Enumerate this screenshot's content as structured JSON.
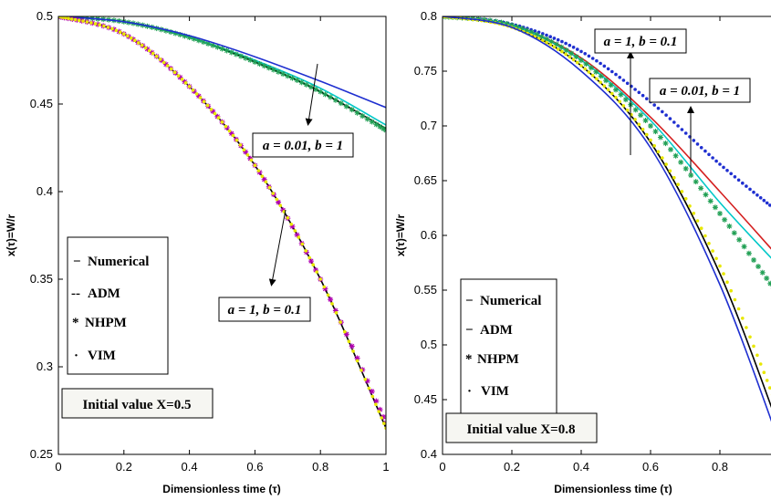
{
  "charts": {
    "left": {
      "chart_data": {
        "type": "line",
        "xlabel": "Dimensionless time (τ)",
        "ylabel": "x(τ)=W/r",
        "xlim": [
          0,
          1
        ],
        "ylim": [
          0.25,
          0.5
        ],
        "x_ticks": [
          "0",
          "0.2",
          "0.4",
          "0.6",
          "0.8",
          "1"
        ],
        "y_ticks": [
          "0.25",
          "0.3",
          "0.35",
          "0.4",
          "0.45",
          "0.5"
        ],
        "grid": false,
        "legend": {
          "placement": "left",
          "entries": [
            {
              "marker": "−",
              "label": "Numerical"
            },
            {
              "marker": "--",
              "label": "ADM"
            },
            {
              "marker": "*",
              "label": "NHPM"
            },
            {
              "marker": "·",
              "label": "VIM"
            }
          ]
        },
        "note": "Initial value X=0.5",
        "annotations": [
          {
            "text": "a = 0.01, b = 1"
          },
          {
            "text": "a = 1, b = 0.1"
          }
        ],
        "colors": {
          "numerical": "#000000",
          "adm": "#00c8c8",
          "nhpm": "#b000b0",
          "vim": "#e8e800",
          "alt1": "#1f2fd0",
          "alt2": "#22a055"
        },
        "series": [
          {
            "group": "a=0.01,b=1",
            "method": "Numerical",
            "x": [
              0,
              0.2,
              0.4,
              0.6,
              0.8,
              1
            ],
            "y": [
              0.5,
              0.497,
              0.488,
              0.474,
              0.457,
              0.436
            ]
          },
          {
            "group": "a=0.01,b=1",
            "method": "ADM",
            "x": [
              0,
              0.2,
              0.4,
              0.6,
              0.8,
              1
            ],
            "y": [
              0.5,
              0.497,
              0.488,
              0.475,
              0.459,
              0.438
            ]
          },
          {
            "group": "a=0.01,b=1",
            "method": "NHPM",
            "x": [
              0,
              0.2,
              0.4,
              0.6,
              0.8,
              1
            ],
            "y": [
              0.5,
              0.497,
              0.488,
              0.474,
              0.457,
              0.435
            ]
          },
          {
            "group": "a=0.01,b=1",
            "method": "VIM",
            "x": [
              0,
              0.2,
              0.4,
              0.6,
              0.8,
              1
            ],
            "y": [
              0.5,
              0.497,
              0.489,
              0.477,
              0.463,
              0.448
            ]
          },
          {
            "group": "a=1,b=0.1",
            "method": "Numerical",
            "x": [
              0,
              0.2,
              0.4,
              0.6,
              0.8,
              1
            ],
            "y": [
              0.5,
              0.49,
              0.46,
              0.415,
              0.35,
              0.265
            ]
          },
          {
            "group": "a=1,b=0.1",
            "method": "NHPM",
            "x": [
              0,
              0.2,
              0.4,
              0.6,
              0.8,
              1
            ],
            "y": [
              0.5,
              0.49,
              0.46,
              0.415,
              0.35,
              0.268
            ]
          },
          {
            "group": "a=1,b=0.1",
            "method": "VIM",
            "x": [
              0,
              0.2,
              0.4,
              0.6,
              0.8,
              1
            ],
            "y": [
              0.5,
              0.49,
              0.46,
              0.415,
              0.35,
              0.265
            ]
          }
        ]
      }
    },
    "right": {
      "chart_data": {
        "type": "line",
        "xlabel": "Dimensionless time (τ)",
        "ylabel": "x(τ)=W/r",
        "xlim": [
          0,
          1
        ],
        "ylim": [
          0.4,
          0.8
        ],
        "x_ticks": [
          "0",
          "0.2",
          "0.4",
          "0.6",
          "0.8"
        ],
        "y_ticks": [
          "0.4",
          "0.45",
          "0.5",
          "0.55",
          "0.6",
          "0.65",
          "0.7",
          "0.75",
          "0.8"
        ],
        "grid": false,
        "legend": {
          "placement": "bottom-left",
          "entries": [
            {
              "marker": "−",
              "label": "Numerical"
            },
            {
              "marker": "−",
              "label": "ADM"
            },
            {
              "marker": "*",
              "label": "NHPM"
            },
            {
              "marker": "·",
              "label": "VIM"
            }
          ]
        },
        "note": "Initial value X=0.8",
        "annotations": [
          {
            "text": "a = 1, b = 0.1"
          },
          {
            "text": "a = 0.01, b = 1"
          }
        ],
        "colors": {
          "numerical": "#000000",
          "adm": "#00c8c8",
          "nhpm": "#22a055",
          "vim": "#e8e800",
          "alt1": "#1f2fd0",
          "alt2": "#d42020"
        },
        "series": [
          {
            "group": "a=0.01,b=1",
            "method": "VIM",
            "x": [
              0,
              0.2,
              0.4,
              0.6,
              0.8,
              0.97
            ],
            "y": [
              0.8,
              0.793,
              0.768,
              0.722,
              0.665,
              0.621
            ]
          },
          {
            "group": "a=0.01,b=1",
            "method": "ADM",
            "x": [
              0,
              0.2,
              0.4,
              0.6,
              0.8,
              0.97
            ],
            "y": [
              0.8,
              0.792,
              0.762,
              0.708,
              0.64,
              0.58
            ]
          },
          {
            "group": "a=0.01,b=1",
            "method": "Numerical",
            "x": [
              0,
              0.2,
              0.4,
              0.6,
              0.8,
              0.97
            ],
            "y": [
              0.8,
              0.792,
              0.76,
              0.705,
              0.63,
              0.572
            ]
          },
          {
            "group": "a=0.01,b=1",
            "method": "NHPM",
            "x": [
              0,
              0.2,
              0.4,
              0.6,
              0.8,
              0.97
            ],
            "y": [
              0.8,
              0.792,
              0.76,
              0.7,
              0.62,
              0.545
            ]
          },
          {
            "group": "a=1,b=0.1",
            "method": "Numerical",
            "x": [
              0,
              0.2,
              0.4,
              0.6,
              0.8,
              0.97
            ],
            "y": [
              0.8,
              0.79,
              0.755,
              0.685,
              0.565,
              0.425
            ]
          },
          {
            "group": "a=1,b=0.1",
            "method": "VIM",
            "x": [
              0,
              0.2,
              0.4,
              0.6,
              0.8,
              0.97
            ],
            "y": [
              0.8,
              0.79,
              0.755,
              0.687,
              0.572,
              0.44
            ]
          },
          {
            "group": "a=1,b=0.1",
            "method": "ADM",
            "x": [
              0,
              0.2,
              0.4,
              0.6,
              0.8,
              0.97
            ],
            "y": [
              0.8,
              0.79,
              0.75,
              0.68,
              0.555,
              0.412
            ]
          }
        ]
      }
    }
  }
}
